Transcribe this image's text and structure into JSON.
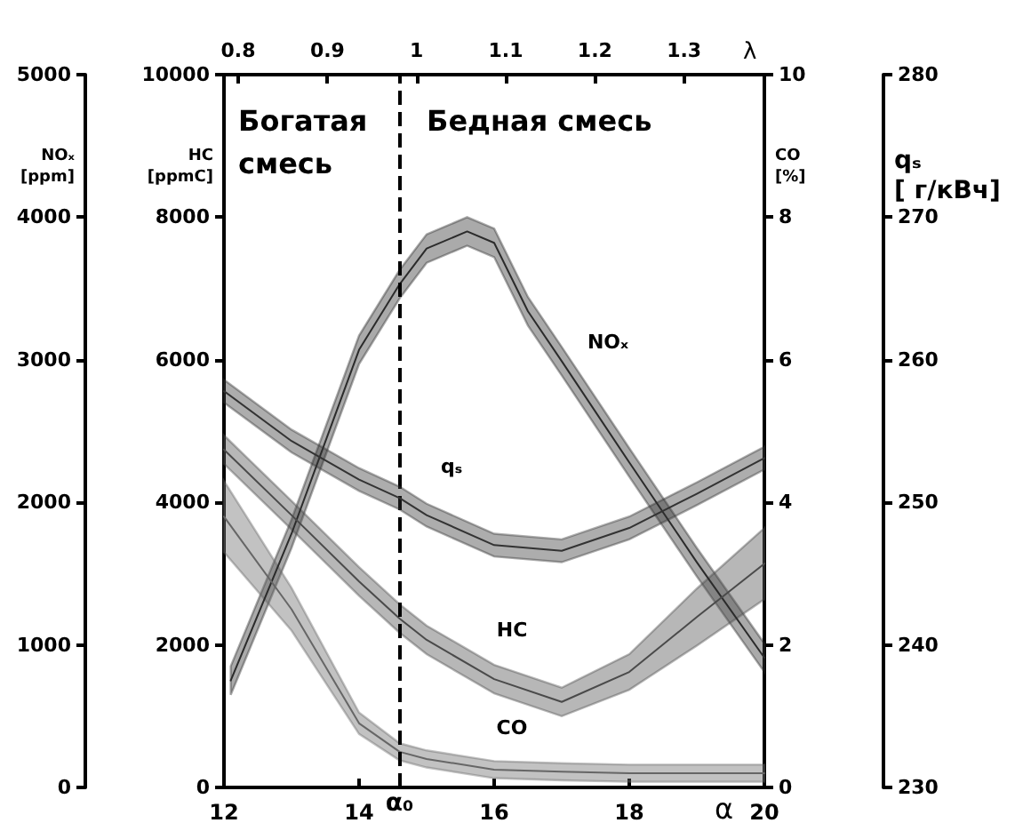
{
  "chart_data": [
    {
      "type": "line",
      "xlabel": "α",
      "x2label": "λ",
      "ylabel": "HC [ppmC]",
      "y2label": "CO [%]",
      "y3label": "NOₓ [ppm]",
      "xlim": [
        12,
        20
      ],
      "xticks": [
        12,
        14,
        16,
        18,
        20
      ],
      "x2lim": [
        0.784,
        1.39
      ],
      "x2ticks": [
        0.8,
        0.9,
        1.0,
        1.1,
        1.2,
        1.3
      ],
      "ylim": [
        0,
        10000
      ],
      "yticks": [
        0,
        2000,
        4000,
        6000,
        8000,
        10000
      ],
      "y2lim": [
        0,
        10
      ],
      "y2ticks": [
        0,
        2,
        4,
        6,
        8,
        10
      ],
      "y3lim": [
        0,
        5000
      ],
      "y3ticks": [
        0,
        1000,
        2000,
        3000,
        4000,
        5000
      ],
      "marker": "none",
      "line_style": "solid",
      "annotations": [
        "Богатая смесь",
        "Бедная смесь"
      ],
      "ref_lines": [
        {
          "axis": "x",
          "value": 14.6,
          "label": "α₀",
          "line_style": "dashed",
          "color": "#000000"
        }
      ],
      "series": [
        {
          "name": "NOₓ",
          "color": "#2b2b2b",
          "axis": "y3",
          "x": [
            12.1,
            13,
            14,
            14.6,
            15,
            15.6,
            16,
            16.5,
            17,
            18,
            19,
            20
          ],
          "values": [
            750,
            1780,
            3070,
            3530,
            3780,
            3900,
            3820,
            3340,
            2990,
            2280,
            1580,
            910
          ],
          "lower": [
            650,
            1680,
            2970,
            3430,
            3680,
            3800,
            3720,
            3240,
            2890,
            2180,
            1480,
            810
          ],
          "upper": [
            850,
            1880,
            3170,
            3630,
            3880,
            4000,
            3920,
            3440,
            3090,
            2380,
            1680,
            1010
          ]
        },
        {
          "name": "HC",
          "color": "#4a4a4a",
          "x": [
            12,
            13,
            14,
            14.6,
            15,
            16,
            17,
            18,
            19,
            20
          ],
          "values": [
            4740,
            3820,
            2890,
            2370,
            2070,
            1520,
            1200,
            1620,
            2390,
            3140
          ],
          "lower": [
            4540,
            3620,
            2690,
            2170,
            1870,
            1320,
            1000,
            1370,
            1990,
            2640
          ],
          "upper": [
            4940,
            4020,
            3090,
            2570,
            2270,
            1720,
            1400,
            1870,
            2790,
            3640
          ]
        },
        {
          "name": "CO",
          "color": "#666666",
          "axis": "y2",
          "x": [
            12,
            13,
            14,
            14.6,
            15,
            16,
            17,
            18,
            20
          ],
          "values": [
            3.8,
            2.5,
            0.9,
            0.5,
            0.4,
            0.25,
            0.22,
            0.2,
            0.2
          ],
          "lower": [
            3.3,
            2.2,
            0.75,
            0.38,
            0.28,
            0.13,
            0.1,
            0.08,
            0.08
          ],
          "upper": [
            4.3,
            2.8,
            1.05,
            0.62,
            0.52,
            0.37,
            0.34,
            0.32,
            0.32
          ]
        }
      ]
    },
    {
      "type": "line",
      "ylabel": "qₛ [ г/кВч]",
      "xlim": [
        12,
        20
      ],
      "tick_labels": "y",
      "ylim": [
        230,
        280
      ],
      "yticks": [
        230,
        240,
        250,
        260,
        270,
        280
      ],
      "marker": "none",
      "line_style": "solid",
      "series": [
        {
          "name": "qₛ",
          "color": "#333333",
          "x": [
            12,
            13,
            14,
            14.6,
            15,
            16,
            17,
            18,
            19,
            20
          ],
          "values": [
            257.8,
            254.3,
            251.6,
            250.3,
            249.1,
            247.0,
            246.6,
            248.2,
            250.6,
            253.1
          ],
          "lower": [
            257.0,
            253.5,
            250.8,
            249.5,
            248.3,
            246.2,
            245.8,
            247.4,
            249.8,
            252.3
          ],
          "upper": [
            258.6,
            255.1,
            252.4,
            251.1,
            249.9,
            247.8,
            247.4,
            249.0,
            251.4,
            253.9
          ]
        }
      ]
    }
  ]
}
